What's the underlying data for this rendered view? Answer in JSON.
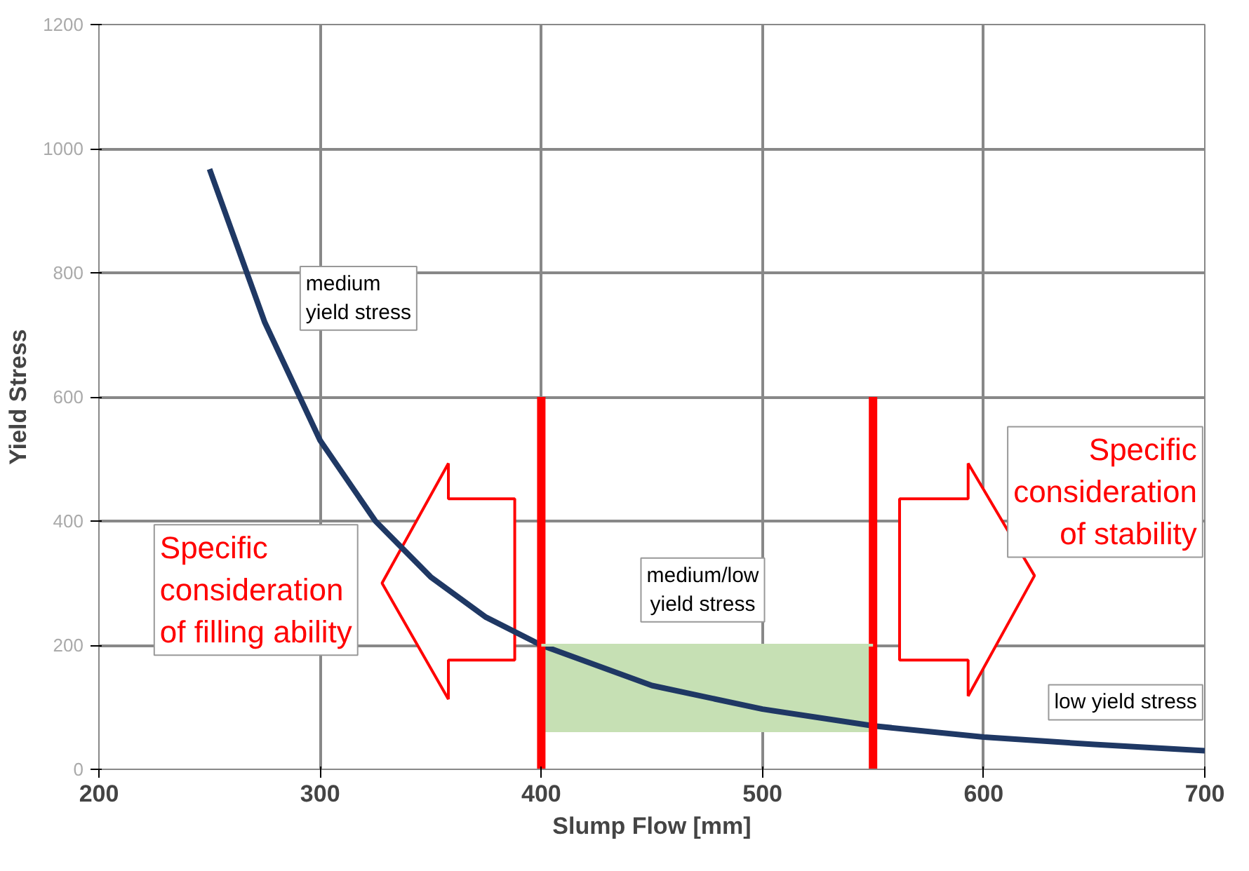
{
  "chart_data": {
    "type": "line",
    "xlabel": "Slump Flow [mm]",
    "ylabel": "Yield Stress",
    "xlim": [
      200,
      700
    ],
    "ylim": [
      0,
      1200
    ],
    "xticks": [
      200,
      300,
      400,
      500,
      600,
      700
    ],
    "yticks": [
      0,
      200,
      400,
      600,
      800,
      1000,
      1200
    ],
    "grid": true,
    "series": [
      {
        "color": "#1f3864",
        "x": [
          250,
          275,
          300,
          325,
          350,
          375,
          400,
          450,
          500,
          550,
          600,
          650,
          700
        ],
        "values": [
          967,
          720,
          530,
          400,
          310,
          245,
          200,
          135,
          97,
          70,
          52,
          40,
          30
        ]
      },
      {
        "color": "#c6e0b4",
        "x": [
          400,
          550
        ],
        "values": [
          200,
          200
        ],
        "lower": [
          60,
          60
        ],
        "upper": [
          200,
          200
        ]
      },
      {
        "color": "#ff0000",
        "x": [
          400,
          400
        ],
        "values": [
          0,
          600
        ]
      },
      {
        "color": "#ff0000",
        "x": [
          550,
          550
        ],
        "values": [
          0,
          600
        ]
      }
    ],
    "annotations": [
      "medium\nyield stress",
      "medium/low\nyield stress",
      "low yield stress",
      "Specific\nconsideration\nof filling ability",
      "Specific\nconsideration\nof stability"
    ]
  }
}
